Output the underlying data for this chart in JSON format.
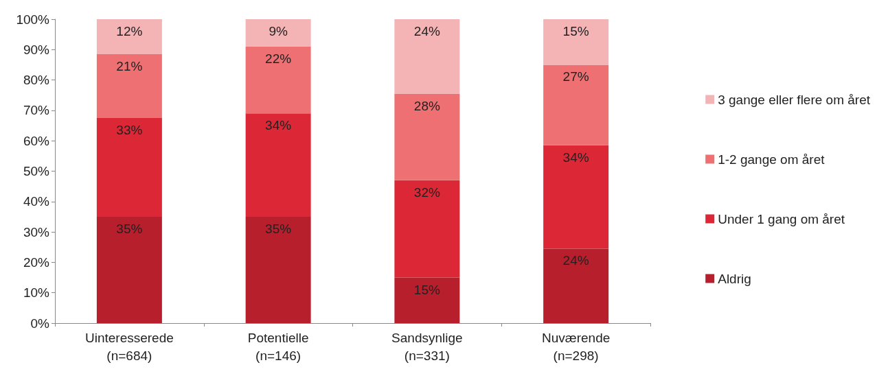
{
  "chart_data": {
    "type": "bar",
    "stacked": true,
    "categories": [
      "Uinteresserede\n(n=684)",
      "Potentielle\n(n=146)",
      "Sandsynlige\n(n=331)",
      "Nuværende\n(n=298)"
    ],
    "series": [
      {
        "name": "Aldrig",
        "color": "#b71f2d",
        "values": [
          35,
          35,
          15,
          24.5
        ],
        "value_labels": [
          "35%",
          "35%",
          "15%",
          "24%"
        ]
      },
      {
        "name": "Under 1 gang om året",
        "color": "#dc2836",
        "values": [
          32.5,
          34,
          32,
          34
        ],
        "value_labels": [
          "33%",
          "34%",
          "32%",
          "34%"
        ]
      },
      {
        "name": "1-2 gange om året",
        "color": "#ee7073",
        "values": [
          21,
          22,
          28.5,
          26.5
        ],
        "value_labels": [
          "21%",
          "22%",
          "28%",
          "27%"
        ]
      },
      {
        "name": "3 gange eller flere om året",
        "color": "#f4b3b4",
        "values": [
          11.5,
          9,
          24.5,
          15
        ],
        "value_labels": [
          "12%",
          "9%",
          "24%",
          "15%"
        ]
      }
    ],
    "ylim": [
      0,
      100
    ],
    "yticks": [
      {
        "value": 0,
        "label": "0%"
      },
      {
        "value": 10,
        "label": "10%"
      },
      {
        "value": 20,
        "label": "20%"
      },
      {
        "value": 30,
        "label": "30%"
      },
      {
        "value": 40,
        "label": "40%"
      },
      {
        "value": 50,
        "label": "50%"
      },
      {
        "value": 60,
        "label": "60%"
      },
      {
        "value": 70,
        "label": "70%"
      },
      {
        "value": 80,
        "label": "80%"
      },
      {
        "value": 90,
        "label": "90%"
      },
      {
        "value": 100,
        "label": "100%"
      }
    ],
    "grid": false,
    "legend": "right"
  }
}
